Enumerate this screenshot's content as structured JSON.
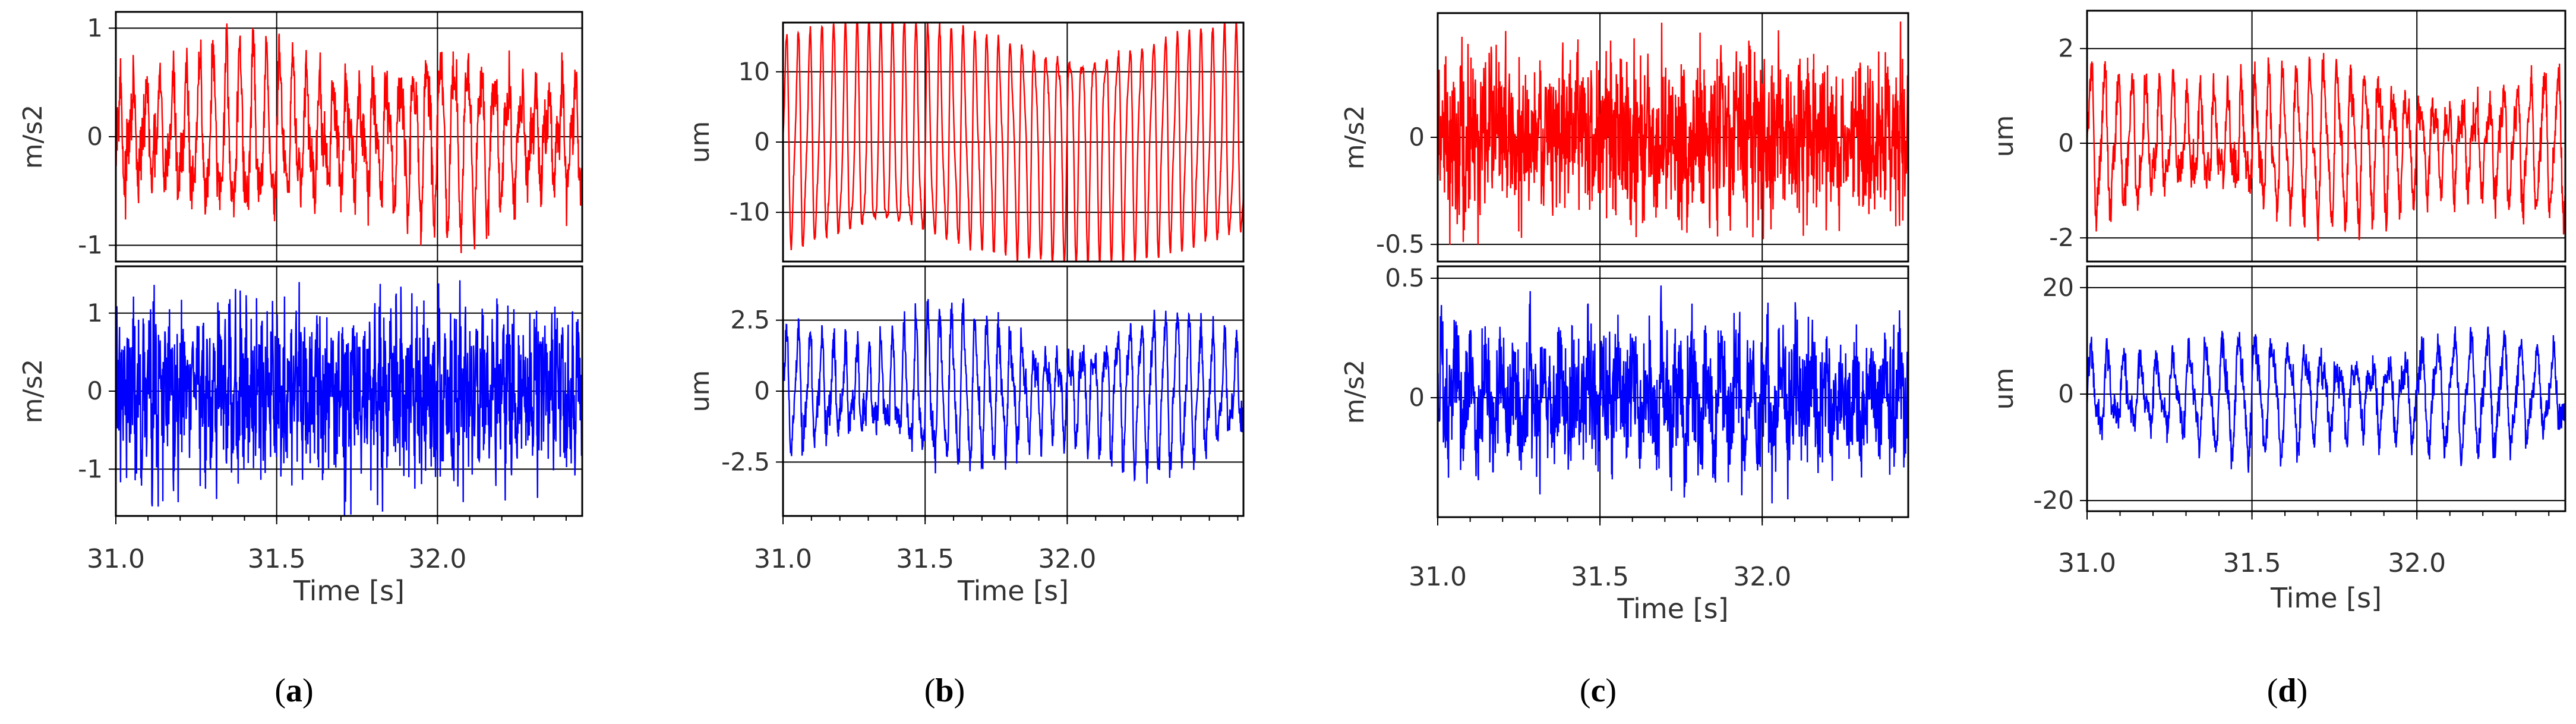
{
  "figure": {
    "panels": [
      {
        "label_open": "(",
        "label_letter": "a",
        "label_close": ")"
      },
      {
        "label_open": "(",
        "label_letter": "b",
        "label_close": ")"
      },
      {
        "label_open": "(",
        "label_letter": "c",
        "label_close": ")"
      },
      {
        "label_open": "(",
        "label_letter": "d",
        "label_close": ")"
      }
    ]
  },
  "chart_data": [
    {
      "panel": "a",
      "type": "line",
      "xlabel": "Time [s]",
      "xlim": [
        31.0,
        32.45
      ],
      "xticks": [
        "31.0",
        "31.5",
        "32.0"
      ],
      "subplots": [
        {
          "name": "top",
          "color": "#ff0000",
          "ylabel": "m/s2",
          "ylim": [
            -1.15,
            1.15
          ],
          "yticks": [
            {
              "v": 1,
              "t": "1"
            },
            {
              "v": 0,
              "t": "0"
            },
            {
              "v": -1,
              "t": "-1"
            }
          ],
          "signal": {
            "amp": 0.7,
            "freq": 24,
            "beat_freq": 1.6,
            "noise": 0.3
          }
        },
        {
          "name": "bottom",
          "color": "#0000ff",
          "ylabel": "m/s2",
          "ylim": [
            -1.6,
            1.6
          ],
          "yticks": [
            {
              "v": 1,
              "t": "1"
            },
            {
              "v": 0,
              "t": "0"
            },
            {
              "v": -1,
              "t": "-1"
            }
          ],
          "signal": {
            "amp": 0.35,
            "freq": 60,
            "beat_freq": 0,
            "noise": 1.1
          }
        }
      ]
    },
    {
      "panel": "b",
      "type": "line",
      "xlabel": "Time [s]",
      "xlim": [
        31.0,
        32.62
      ],
      "xticks": [
        "31.0",
        "31.5",
        "32.0"
      ],
      "subplots": [
        {
          "name": "top",
          "color": "#ff0000",
          "ylabel": "um",
          "ylim": [
            -17,
            17
          ],
          "yticks": [
            {
              "v": 10,
              "t": "10"
            },
            {
              "v": 0,
              "t": "0"
            },
            {
              "v": -10,
              "t": "-10"
            }
          ],
          "signal": {
            "amp": 14,
            "freq": 24,
            "beat_freq": 0,
            "noise": 0.8
          }
        },
        {
          "name": "bottom",
          "color": "#0000ff",
          "ylabel": "um",
          "ylim": [
            -4.4,
            4.4
          ],
          "yticks": [
            {
              "v": 2.5,
              "t": "2.5"
            },
            {
              "v": 0,
              "t": "0"
            },
            {
              "v": -2.5,
              "t": "-2.5"
            }
          ],
          "signal": {
            "amp": 2.4,
            "freq": 24,
            "beat_freq": 1.4,
            "noise": 0.7
          }
        }
      ]
    },
    {
      "panel": "c",
      "type": "line",
      "xlabel": "Time [s]",
      "xlim": [
        31.0,
        32.45
      ],
      "xticks": [
        "31.0",
        "31.5",
        "32.0"
      ],
      "subplots": [
        {
          "name": "top",
          "color": "#ff0000",
          "ylabel": "m/s2",
          "ylim": [
            -0.58,
            0.58
          ],
          "yticks": [
            {
              "v": 0,
              "t": "0"
            },
            {
              "v": -0.5,
              "t": "-0.5"
            }
          ],
          "signal": {
            "amp": 0.05,
            "freq": 45,
            "beat_freq": 0,
            "noise": 0.42
          }
        },
        {
          "name": "bottom",
          "color": "#0000ff",
          "ylabel": "m/s2",
          "ylim": [
            -0.5,
            0.55
          ],
          "yticks": [
            {
              "v": 0.5,
              "t": "0.5"
            },
            {
              "v": 0,
              "t": "0"
            }
          ],
          "signal": {
            "amp": 0.15,
            "freq": 22,
            "beat_freq": 1.2,
            "noise": 0.28
          }
        }
      ]
    },
    {
      "panel": "d",
      "type": "line",
      "xlabel": "Time [s]",
      "xlim": [
        31.0,
        32.45
      ],
      "xticks": [
        "31.0",
        "31.5",
        "32.0"
      ],
      "subplots": [
        {
          "name": "top",
          "color": "#ff0000",
          "ylabel": "um",
          "ylim": [
            -2.5,
            2.8
          ],
          "yticks": [
            {
              "v": 2,
              "t": "2"
            },
            {
              "v": 0,
              "t": "0"
            },
            {
              "v": -2,
              "t": "-2"
            }
          ],
          "signal": {
            "amp": 1.5,
            "freq": 24,
            "beat_freq": 1.3,
            "noise": 0.5
          }
        },
        {
          "name": "bottom",
          "color": "#0000ff",
          "ylabel": "um",
          "ylim": [
            -22,
            24
          ],
          "yticks": [
            {
              "v": 20,
              "t": "20"
            },
            {
              "v": 0,
              "t": "0"
            },
            {
              "v": -20,
              "t": "-20"
            }
          ],
          "signal": {
            "amp": 10,
            "freq": 20,
            "beat_freq": 1.5,
            "noise": 3.5
          }
        }
      ]
    }
  ]
}
